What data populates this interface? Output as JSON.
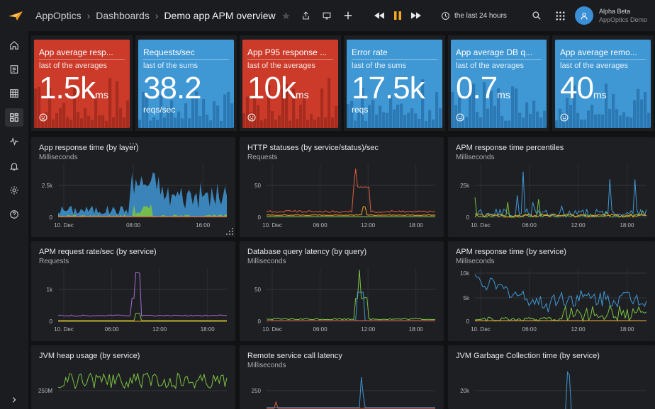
{
  "header": {
    "breadcrumb": [
      "AppOptics",
      "Dashboards"
    ],
    "dashboard_title": "Demo app APM overview",
    "time_range": "the last 24 hours",
    "user_name": "Alpha Beta",
    "user_org": "AppOptics Demo"
  },
  "icons": {
    "logo": "solarwinds-logo",
    "topbar": [
      "star-icon",
      "share-icon",
      "monitor-icon",
      "add-icon",
      "rewind-icon",
      "pause-icon",
      "fast-forward-icon",
      "clock-icon",
      "search-icon",
      "apps-grid-icon",
      "user-icon"
    ],
    "sidebar": [
      "home-icon",
      "document-icon",
      "grid-icon",
      "dashboard-icon",
      "pulse-icon",
      "bell-icon",
      "gear-icon",
      "help-icon",
      "expand-icon"
    ]
  },
  "colors": {
    "tile_red": "#cc3b2a",
    "tile_blue": "#3f97d4",
    "accent": "#f5a623"
  },
  "tiles": [
    {
      "title": "App average resp...",
      "subtitle": "last of the averages",
      "value": "1.5k",
      "unit": "ms",
      "unit_line": "",
      "color": "red",
      "face": "sad"
    },
    {
      "title": "Requests/sec",
      "subtitle": "last of the sums",
      "value": "38.2",
      "unit": "",
      "unit_line": "reqs/sec",
      "color": "blue",
      "face": ""
    },
    {
      "title": "App P95 response ...",
      "subtitle": "last of the averages",
      "value": "10k",
      "unit": "ms",
      "unit_line": "",
      "color": "red",
      "face": "sad"
    },
    {
      "title": "Error rate",
      "subtitle": "last of the sums",
      "value": "17.5k",
      "unit": "",
      "unit_line": "reqs",
      "color": "blue",
      "face": ""
    },
    {
      "title": "App average DB q...",
      "subtitle": "last of the averages",
      "value": "0.7",
      "unit": "ms",
      "unit_line": "",
      "color": "blue",
      "face": "happy"
    },
    {
      "title": "App average remo...",
      "subtitle": "last of the averages",
      "value": "40",
      "unit": "ms",
      "unit_line": "",
      "color": "blue",
      "face": "happy"
    }
  ],
  "panels": [
    {
      "title": "App response time (by layer)",
      "subtitle": "Milliseconds",
      "y_ticks": [
        "2.5k",
        "0"
      ],
      "x_ticks": [
        "10. Dec",
        "08:00",
        "16:00"
      ]
    },
    {
      "title": "HTTP statuses (by service/status)/sec",
      "subtitle": "Requests",
      "y_ticks": [
        "50",
        "0"
      ],
      "x_ticks": [
        "10. Dec",
        "06:00",
        "12:00",
        "18:00"
      ]
    },
    {
      "title": "APM response time percentiles",
      "subtitle": "Milliseconds",
      "y_ticks": [
        "25k",
        "0"
      ],
      "x_ticks": [
        "10. Dec",
        "06:00",
        "12:00",
        "18:00"
      ]
    },
    {
      "title": "APM request rate/sec (by service)",
      "subtitle": "Requests",
      "y_ticks": [
        "1k",
        "0"
      ],
      "x_ticks": [
        "10. Dec",
        "06:00",
        "12:00",
        "18:00"
      ]
    },
    {
      "title": "Database query latency (by query)",
      "subtitle": "Milliseconds",
      "y_ticks": [
        "50",
        "0"
      ],
      "x_ticks": [
        "10. Dec",
        "06:00",
        "12:00",
        "18:00"
      ]
    },
    {
      "title": "APM response time (by service)",
      "subtitle": "Milliseconds",
      "y_ticks": [
        "10k",
        "5k",
        "0"
      ],
      "x_ticks": [
        "10. Dec",
        "06:00",
        "12:00",
        "18:00"
      ]
    },
    {
      "title": "JVM heap usage (by service)",
      "subtitle": "",
      "y_ticks": [
        "250M"
      ],
      "x_ticks": []
    },
    {
      "title": "Remote service call latency",
      "subtitle": "Milliseconds",
      "y_ticks": [
        "250"
      ],
      "x_ticks": []
    },
    {
      "title": "JVM Garbage Collection time (by service)",
      "subtitle": "",
      "y_ticks": [
        "20k"
      ],
      "x_ticks": []
    }
  ]
}
